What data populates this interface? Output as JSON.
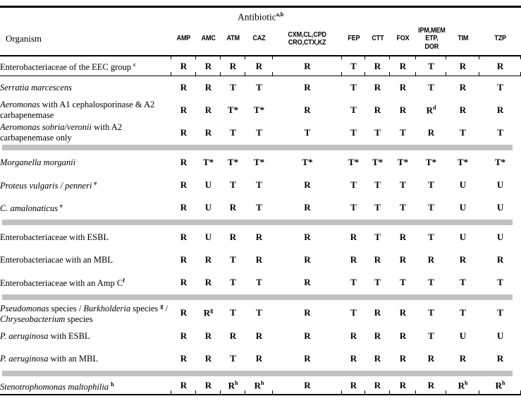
{
  "table": {
    "title": {
      "text": "Antibiotic",
      "sup": "a,b"
    },
    "organism_header": "Organism",
    "columns": [
      {
        "lines": [
          "AMP"
        ]
      },
      {
        "lines": [
          "AMC"
        ]
      },
      {
        "lines": [
          "ATM"
        ]
      },
      {
        "lines": [
          "CAZ"
        ]
      },
      {
        "lines": [
          "CXM,CL,CPD",
          "CRO,CTX,KZ"
        ]
      },
      {
        "lines": [
          "FEP"
        ]
      },
      {
        "lines": [
          "CTT"
        ]
      },
      {
        "lines": [
          "FOX"
        ]
      },
      {
        "lines": [
          "IPM,MEM",
          "ETP,",
          "DOR"
        ]
      },
      {
        "lines": [
          "TIM"
        ]
      },
      {
        "lines": [
          "TZP"
        ]
      }
    ],
    "rows": [
      {
        "label": [
          {
            "t": "Enterobacteriaceae of the EEC group "
          },
          {
            "t": "c",
            "sup": true
          }
        ],
        "values": [
          "R",
          "R",
          "R",
          "R",
          "R",
          "T",
          "R",
          "R",
          "T",
          "R",
          "R"
        ],
        "sep_after": "line"
      },
      {
        "label": [
          {
            "t": "Serratia marcescens",
            "i": true
          }
        ],
        "values": [
          "R",
          "R",
          "T",
          "T",
          "R",
          "T",
          "R",
          "R",
          "T",
          "R",
          "T"
        ]
      },
      {
        "label": [
          {
            "t": "Aeromonas",
            "i": true
          },
          {
            "t": " with A1 cephalosporinase & A2 carbapenemase"
          }
        ],
        "values": [
          "R",
          "R",
          "T*",
          "T*",
          "R",
          "T",
          "R",
          "R",
          "R^d",
          "R",
          "R"
        ]
      },
      {
        "label": [
          {
            "t": "Aeromonas sobria/veronii",
            "i": true
          },
          {
            "t": " with A2 carbapenemase only"
          }
        ],
        "values": [
          "R",
          "R",
          "T",
          "T",
          "T",
          "T",
          "T",
          "T",
          "R",
          "T",
          "T"
        ],
        "sep_after": "bar"
      },
      {
        "label": [
          {
            "t": "Morganella morganii",
            "i": true
          }
        ],
        "values": [
          "R",
          "T*",
          "T*",
          "T*",
          "T*",
          "T*",
          "T*",
          "T*",
          "T*",
          "T*",
          "T*"
        ]
      },
      {
        "label": [
          {
            "t": "Proteus vulgaris / penneri ",
            "i": true
          },
          {
            "t": "e",
            "sup": true
          }
        ],
        "values": [
          "R",
          "U",
          "T",
          "T",
          "R",
          "T",
          "T",
          "T",
          "T",
          "U",
          "U"
        ]
      },
      {
        "label": [
          {
            "t": "C. amalonaticus ",
            "i": true
          },
          {
            "t": "e",
            "sup": true
          }
        ],
        "values": [
          "R",
          "U",
          "R",
          "T",
          "R",
          "T",
          "T",
          "T",
          "T",
          "U",
          "U"
        ],
        "sep_after": "bar"
      },
      {
        "label": [
          {
            "t": "Enterobacteriaceae with ESBL"
          }
        ],
        "values": [
          "R",
          "U",
          "R",
          "R",
          "R",
          "R",
          "T",
          "R",
          "T",
          "U",
          "U"
        ]
      },
      {
        "label": [
          {
            "t": "Enterobacteriacae with an MBL"
          }
        ],
        "values": [
          "R",
          "R",
          "T",
          "R",
          "R",
          "R",
          "R",
          "R",
          "R",
          "R",
          "R"
        ]
      },
      {
        "label": [
          {
            "t": "Enterobacteriaceae with an Amp C"
          },
          {
            "t": "f",
            "sup": true
          }
        ],
        "values": [
          "R",
          "R",
          "T",
          "T",
          "R",
          "T",
          "T",
          "T",
          "T",
          "T",
          "T"
        ],
        "sep_after": "bar"
      },
      {
        "label": [
          {
            "t": "Pseudomonas",
            "i": true
          },
          {
            "t": " species / "
          },
          {
            "t": "Burkholderia",
            "i": true
          },
          {
            "t": " species "
          },
          {
            "t": "g",
            "sup": true
          },
          {
            "t": " / "
          },
          {
            "t": "Chryseobacterium",
            "i": true
          },
          {
            "t": " species"
          }
        ],
        "values": [
          "R",
          "R^g",
          "T",
          "T",
          "R",
          "T",
          "R",
          "R",
          "T",
          "T",
          "T"
        ]
      },
      {
        "label": [
          {
            "t": "P. aeruginosa",
            "i": true
          },
          {
            "t": " with ESBL"
          }
        ],
        "values": [
          "R",
          "R",
          "R",
          "R",
          "R",
          "R",
          "R",
          "R",
          "T",
          "U",
          "U"
        ]
      },
      {
        "label": [
          {
            "t": "P. aeruginosa",
            "i": true
          },
          {
            "t": " with an MBL"
          }
        ],
        "values": [
          "R",
          "R",
          "T",
          "R",
          "R",
          "R",
          "R",
          "R",
          "R",
          "R",
          "R"
        ],
        "sep_after": "bar"
      },
      {
        "label": [
          {
            "t": "Stenotrophomonas maltophilia ",
            "i": true
          },
          {
            "t": "h",
            "sup": true
          }
        ],
        "values": [
          "R",
          "R",
          "R^h",
          "R^h",
          "R",
          "R",
          "R",
          "R",
          "R",
          "R^h",
          "R^h"
        ]
      }
    ]
  },
  "colors": {
    "separator_bar": "#c1c1c1",
    "rule": "#000000",
    "text": "#000000",
    "background": "#ffffff"
  }
}
